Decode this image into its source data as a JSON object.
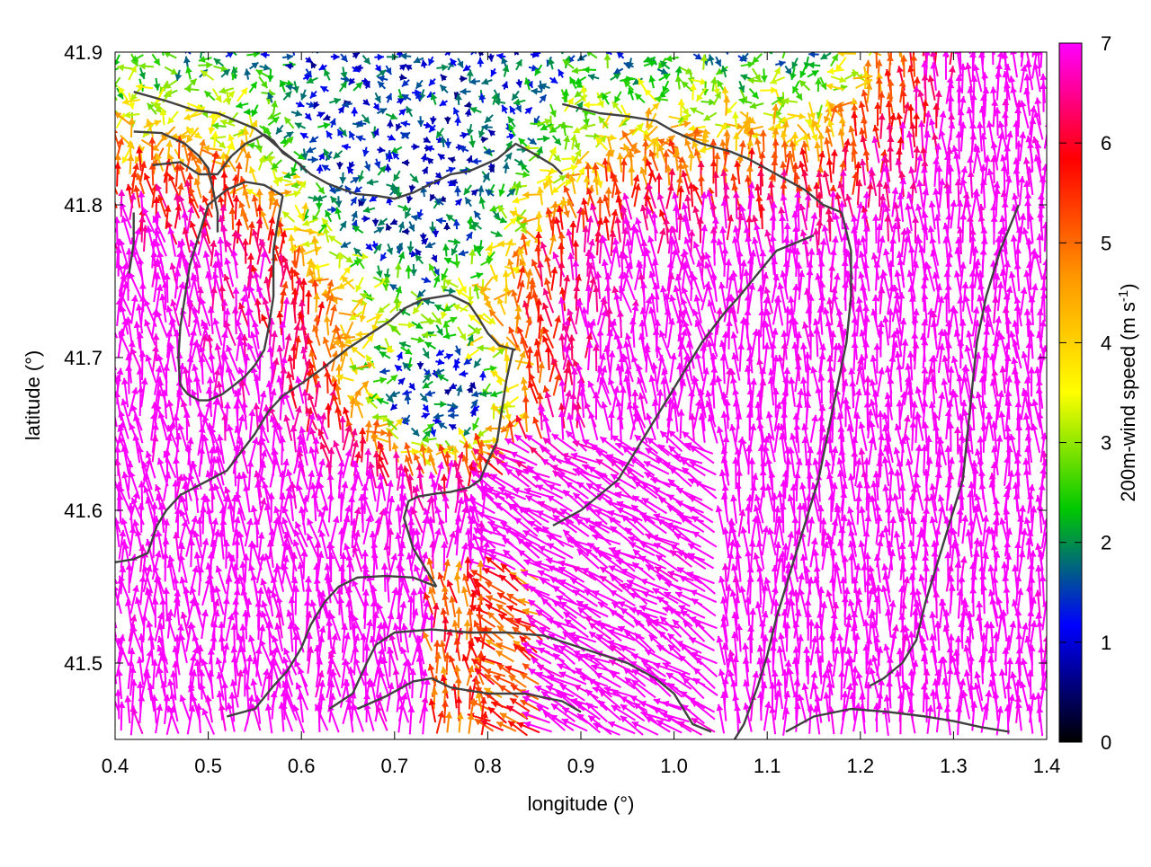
{
  "chart_data": {
    "type": "vector-field",
    "xlabel": "longitude (°)",
    "ylabel": "latitude (°)",
    "xlim": [
      0.4,
      1.4
    ],
    "ylim": [
      41.45,
      41.9
    ],
    "xticks": [
      "0.4",
      "0.5",
      "0.6",
      "0.7",
      "0.8",
      "0.9",
      "1.0",
      "1.1",
      "1.2",
      "1.3",
      "1.4"
    ],
    "yticks": [
      "41.5",
      "41.6",
      "41.7",
      "41.8",
      "41.9"
    ],
    "colorbar": {
      "label_main": "200m-wind speed (m s",
      "label_sup": "-1",
      "label_end": ")",
      "range": [
        0,
        7
      ],
      "ticks": [
        "0",
        "1",
        "2",
        "3",
        "4",
        "5",
        "6",
        "7"
      ],
      "palette": [
        "#000000",
        "#0000ff",
        "#00c800",
        "#ffff00",
        "#ff9600",
        "#ff0000",
        "#ff00ff"
      ]
    },
    "grid": false,
    "contour_color": "#404040",
    "contours": [
      [
        [
          0.42,
          41.874
        ],
        [
          0.455,
          41.868
        ],
        [
          0.485,
          41.862
        ],
        [
          0.51,
          41.86
        ],
        [
          0.53,
          41.855
        ],
        [
          0.55,
          41.85
        ],
        [
          0.565,
          41.843
        ],
        [
          0.58,
          41.835
        ],
        [
          0.595,
          41.828
        ],
        [
          0.61,
          41.82
        ],
        [
          0.628,
          41.814
        ],
        [
          0.645,
          41.81
        ],
        [
          0.66,
          41.807
        ],
        [
          0.68,
          41.806
        ],
        [
          0.7,
          41.804
        ],
        [
          0.72,
          41.808
        ],
        [
          0.74,
          41.814
        ],
        [
          0.76,
          41.82
        ],
        [
          0.78,
          41.822
        ],
        [
          0.81,
          41.83
        ],
        [
          0.83,
          41.84
        ],
        [
          0.848,
          41.834
        ],
        [
          0.87,
          41.826
        ],
        [
          0.88,
          41.82
        ]
      ],
      [
        [
          0.44,
          41.826
        ],
        [
          0.47,
          41.828
        ],
        [
          0.49,
          41.82
        ],
        [
          0.51,
          41.82
        ],
        [
          0.525,
          41.832
        ],
        [
          0.54,
          41.84
        ],
        [
          0.56,
          41.846
        ],
        [
          0.57,
          41.842
        ],
        [
          0.58,
          41.834
        ],
        [
          0.6,
          41.826
        ]
      ],
      [
        [
          0.42,
          41.848
        ],
        [
          0.45,
          41.847
        ],
        [
          0.475,
          41.84
        ],
        [
          0.49,
          41.832
        ],
        [
          0.5,
          41.824
        ],
        [
          0.505,
          41.81
        ],
        [
          0.51,
          41.795
        ],
        [
          0.51,
          41.782
        ]
      ],
      [
        [
          0.415,
          41.755
        ],
        [
          0.42,
          41.775
        ],
        [
          0.42,
          41.795
        ]
      ],
      [
        [
          0.58,
          41.806
        ],
        [
          0.575,
          41.79
        ],
        [
          0.57,
          41.77
        ],
        [
          0.57,
          41.74
        ],
        [
          0.565,
          41.72
        ],
        [
          0.56,
          41.705
        ],
        [
          0.55,
          41.695
        ],
        [
          0.54,
          41.688
        ],
        [
          0.528,
          41.682
        ],
        [
          0.515,
          41.676
        ],
        [
          0.5,
          41.672
        ],
        [
          0.49,
          41.672
        ],
        [
          0.478,
          41.676
        ],
        [
          0.47,
          41.682
        ],
        [
          0.468,
          41.7
        ],
        [
          0.47,
          41.72
        ],
        [
          0.475,
          41.74
        ],
        [
          0.48,
          41.76
        ],
        [
          0.49,
          41.78
        ],
        [
          0.5,
          41.8
        ],
        [
          0.52,
          41.81
        ],
        [
          0.54,
          41.815
        ],
        [
          0.56,
          41.813
        ],
        [
          0.58,
          41.806
        ]
      ],
      [
        [
          0.4,
          41.566
        ],
        [
          0.42,
          41.568
        ],
        [
          0.435,
          41.572
        ],
        [
          0.445,
          41.59
        ],
        [
          0.455,
          41.6
        ],
        [
          0.47,
          41.61
        ],
        [
          0.495,
          41.618
        ],
        [
          0.52,
          41.626
        ],
        [
          0.535,
          41.638
        ],
        [
          0.55,
          41.65
        ],
        [
          0.565,
          41.665
        ],
        [
          0.58,
          41.675
        ],
        [
          0.6,
          41.683
        ],
        [
          0.625,
          41.694
        ],
        [
          0.65,
          41.706
        ],
        [
          0.675,
          41.716
        ],
        [
          0.695,
          41.724
        ],
        [
          0.71,
          41.732
        ],
        [
          0.73,
          41.738
        ],
        [
          0.76,
          41.741
        ],
        [
          0.78,
          41.735
        ],
        [
          0.79,
          41.726
        ],
        [
          0.8,
          41.716
        ],
        [
          0.812,
          41.708
        ],
        [
          0.83,
          41.705
        ]
      ],
      [
        [
          0.827,
          41.705
        ],
        [
          0.82,
          41.685
        ],
        [
          0.815,
          41.665
        ],
        [
          0.81,
          41.645
        ],
        [
          0.8,
          41.632
        ],
        [
          0.792,
          41.62
        ],
        [
          0.78,
          41.615
        ],
        [
          0.76,
          41.612
        ],
        [
          0.745,
          41.611
        ],
        [
          0.725,
          41.609
        ],
        [
          0.715,
          41.606
        ],
        [
          0.71,
          41.595
        ],
        [
          0.72,
          41.575
        ],
        [
          0.735,
          41.56
        ],
        [
          0.745,
          41.55
        ]
      ],
      [
        [
          0.52,
          41.465
        ],
        [
          0.55,
          41.47
        ],
        [
          0.57,
          41.485
        ],
        [
          0.585,
          41.495
        ],
        [
          0.6,
          41.51
        ],
        [
          0.61,
          41.525
        ],
        [
          0.625,
          41.54
        ],
        [
          0.64,
          41.55
        ],
        [
          0.66,
          41.556
        ],
        [
          0.69,
          41.557
        ],
        [
          0.72,
          41.556
        ],
        [
          0.745,
          41.55
        ]
      ],
      [
        [
          0.63,
          41.47
        ],
        [
          0.655,
          41.48
        ],
        [
          0.67,
          41.5
        ],
        [
          0.68,
          41.512
        ],
        [
          0.7,
          41.52
        ],
        [
          0.74,
          41.522
        ],
        [
          0.78,
          41.52
        ],
        [
          0.82,
          41.52
        ],
        [
          0.86,
          41.518
        ],
        [
          0.9,
          41.51
        ],
        [
          0.95,
          41.5
        ],
        [
          0.98,
          41.49
        ],
        [
          1.0,
          41.48
        ],
        [
          1.02,
          41.46
        ],
        [
          1.04,
          41.455
        ]
      ],
      [
        [
          0.66,
          41.47
        ],
        [
          0.69,
          41.478
        ],
        [
          0.72,
          41.488
        ],
        [
          0.74,
          41.49
        ],
        [
          0.76,
          41.484
        ],
        [
          0.8,
          41.48
        ],
        [
          0.84,
          41.48
        ],
        [
          0.88,
          41.475
        ],
        [
          0.9,
          41.468
        ]
      ],
      [
        [
          0.87,
          41.59
        ],
        [
          0.9,
          41.6
        ],
        [
          0.94,
          41.62
        ],
        [
          0.97,
          41.65
        ],
        [
          1.0,
          41.68
        ],
        [
          1.03,
          41.71
        ],
        [
          1.055,
          41.73
        ],
        [
          1.07,
          41.74
        ],
        [
          1.09,
          41.755
        ],
        [
          1.11,
          41.77
        ],
        [
          1.13,
          41.775
        ],
        [
          1.15,
          41.78
        ]
      ],
      [
        [
          0.88,
          41.866
        ],
        [
          0.92,
          41.86
        ],
        [
          0.95,
          41.858
        ],
        [
          0.98,
          41.855
        ],
        [
          1.0,
          41.848
        ],
        [
          1.03,
          41.84
        ],
        [
          1.06,
          41.835
        ],
        [
          1.08,
          41.83
        ],
        [
          1.11,
          41.82
        ],
        [
          1.14,
          41.81
        ],
        [
          1.16,
          41.8
        ],
        [
          1.18,
          41.795
        ]
      ],
      [
        [
          1.18,
          41.795
        ],
        [
          1.19,
          41.77
        ],
        [
          1.19,
          41.74
        ],
        [
          1.185,
          41.71
        ],
        [
          1.175,
          41.68
        ],
        [
          1.165,
          41.65
        ],
        [
          1.155,
          41.62
        ],
        [
          1.14,
          41.59
        ],
        [
          1.125,
          41.56
        ],
        [
          1.11,
          41.53
        ],
        [
          1.1,
          41.505
        ],
        [
          1.09,
          41.485
        ],
        [
          1.075,
          41.46
        ],
        [
          1.065,
          41.45
        ]
      ],
      [
        [
          1.37,
          41.8
        ],
        [
          1.35,
          41.77
        ],
        [
          1.335,
          41.74
        ],
        [
          1.325,
          41.71
        ],
        [
          1.32,
          41.68
        ],
        [
          1.315,
          41.65
        ],
        [
          1.31,
          41.62
        ],
        [
          1.3,
          41.6
        ],
        [
          1.29,
          41.58
        ],
        [
          1.28,
          41.56
        ],
        [
          1.27,
          41.54
        ],
        [
          1.26,
          41.515
        ],
        [
          1.245,
          41.5
        ],
        [
          1.225,
          41.49
        ],
        [
          1.21,
          41.485
        ]
      ],
      [
        [
          1.12,
          41.455
        ],
        [
          1.15,
          41.465
        ],
        [
          1.19,
          41.47
        ],
        [
          1.23,
          41.468
        ],
        [
          1.27,
          41.465
        ],
        [
          1.3,
          41.462
        ],
        [
          1.33,
          41.458
        ],
        [
          1.36,
          41.455
        ]
      ]
    ]
  }
}
